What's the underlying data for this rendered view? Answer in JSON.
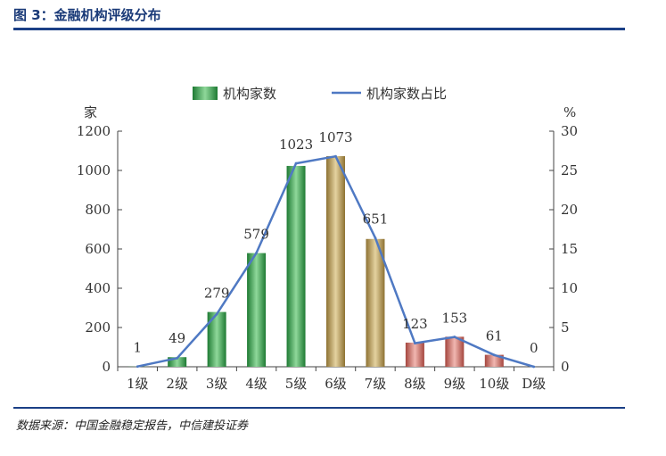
{
  "figure": {
    "title": "图 3：金融机构评级分布",
    "source": "数据来源：中国金融稳定报告，中信建投证券"
  },
  "chart_data": {
    "type": "bar",
    "categories": [
      "1级",
      "2级",
      "3级",
      "4级",
      "5级",
      "6级",
      "7级",
      "8级",
      "9级",
      "10级",
      "D级"
    ],
    "series": [
      {
        "name": "机构家数",
        "values": [
          1,
          49,
          279,
          579,
          1023,
          1073,
          651,
          123,
          153,
          61,
          0
        ],
        "axis": "left",
        "chart_type": "bar"
      },
      {
        "name": "机构家数占比",
        "values": [
          0.03,
          1.1,
          6.7,
          14.5,
          25.9,
          26.8,
          16.4,
          3.0,
          3.8,
          1.5,
          0
        ],
        "axis": "right",
        "chart_type": "line"
      }
    ],
    "data_labels": [
      "1",
      "49",
      "279",
      "579",
      "1023",
      "1073",
      "651",
      "123",
      "153",
      "61",
      "0"
    ],
    "y_left": {
      "unit": "家",
      "range": [
        0,
        1200
      ],
      "ticks": [
        "0",
        "200",
        "400",
        "600",
        "800",
        "1000",
        "1200"
      ]
    },
    "y_right": {
      "unit": "%",
      "range": [
        0,
        30
      ],
      "ticks": [
        "0",
        "5",
        "10",
        "15",
        "20",
        "25",
        "30"
      ]
    },
    "legend": {
      "position": "top"
    },
    "colors": {
      "green_group": "#2f9b45",
      "gold_group": "#b89a55",
      "red_group": "#c2645c",
      "line": "#4f79c3",
      "axis": "#444444"
    },
    "bar_color_groups": [
      "green",
      "green",
      "green",
      "green",
      "green",
      "gold",
      "gold",
      "red",
      "red",
      "red",
      "red"
    ]
  }
}
